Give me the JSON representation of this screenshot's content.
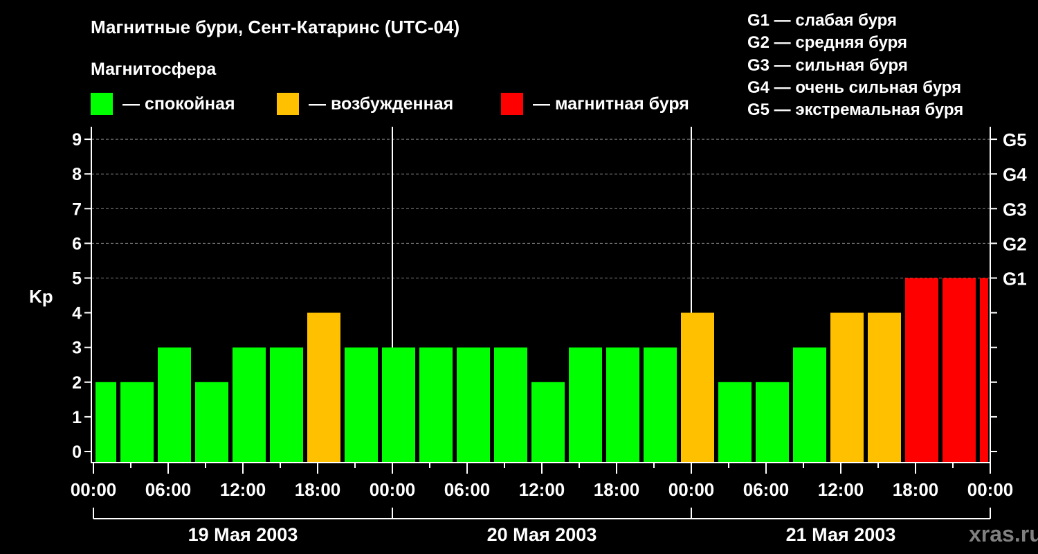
{
  "chart_data": {
    "type": "bar",
    "title": "Магнитные бури, Сент-Катаринс (UTC-04)",
    "legend_title": "Магнитосфера",
    "legend": [
      {
        "label": "— спокойная",
        "color": "#00ff00"
      },
      {
        "label": "— возбужденная",
        "color": "#ffc000"
      },
      {
        "label": "— магнитная буря",
        "color": "#ff0000"
      }
    ],
    "g_scale": [
      "G1 — слабая буря",
      "G2 — средняя буря",
      "G3 — сильная буря",
      "G4 — очень сильная буря",
      "G5 — экстремальная буря"
    ],
    "ylabel": "Kp",
    "ylim": [
      0,
      9
    ],
    "yticks": [
      "0",
      "1",
      "2",
      "3",
      "4",
      "5",
      "6",
      "7",
      "8",
      "9"
    ],
    "right_ticks": [
      {
        "kp": 5,
        "label": "G1"
      },
      {
        "kp": 6,
        "label": "G2"
      },
      {
        "kp": 7,
        "label": "G3"
      },
      {
        "kp": 8,
        "label": "G4"
      },
      {
        "kp": 9,
        "label": "G5"
      }
    ],
    "xrange_hours": [
      0,
      72
    ],
    "xticks": [
      "00:00",
      "06:00",
      "12:00",
      "18:00",
      "00:00",
      "06:00",
      "12:00",
      "18:00",
      "00:00",
      "06:00",
      "12:00",
      "18:00",
      "00:00"
    ],
    "days": [
      "19 Мая 2003",
      "20 Мая 2003",
      "21 Мая 2003"
    ],
    "bars": {
      "start_hours": [
        0,
        2,
        5,
        8,
        11,
        14,
        17,
        20,
        23,
        26,
        29,
        32,
        35,
        38,
        41,
        44,
        47,
        50,
        53,
        56,
        59,
        62,
        65,
        68,
        71
      ],
      "end_hours": [
        2,
        5,
        8,
        11,
        14,
        17,
        20,
        23,
        26,
        29,
        32,
        35,
        38,
        41,
        44,
        47,
        50,
        53,
        56,
        59,
        62,
        65,
        68,
        71,
        72
      ],
      "values": [
        2,
        2,
        3,
        2,
        3,
        3,
        4,
        3,
        3,
        3,
        3,
        3,
        2,
        3,
        3,
        3,
        4,
        2,
        2,
        3,
        4,
        4,
        5,
        5,
        5
      ]
    },
    "grid": "dashed horizontal at Kp 5-9",
    "watermark": "xras.ru"
  }
}
